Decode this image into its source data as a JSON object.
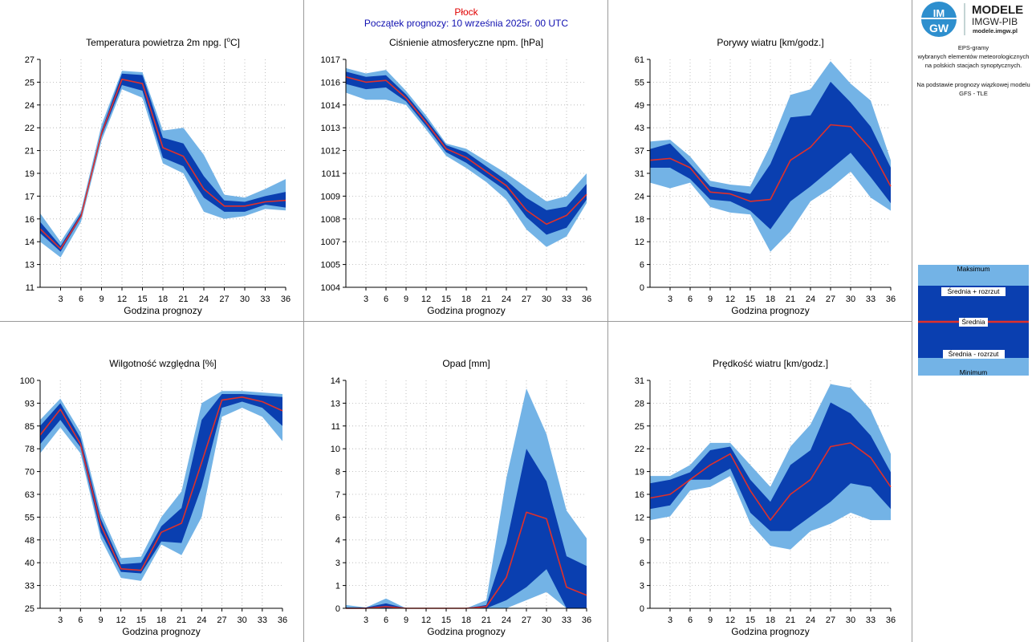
{
  "header": {
    "station": "Płock",
    "forecast_start": "Początek prognozy: 10 września 2025r. 00 UTC"
  },
  "logo": {
    "mark_top": "IM",
    "mark_bottom": "GW",
    "title": "MODELE",
    "subtitle": "IMGW-PIB",
    "url": "modele.imgw.pl"
  },
  "info": {
    "line1": "EPS-gramy",
    "line2": "wybranych elementów meteorologicznych",
    "line3": "na polskich stacjach  synoptycznych.",
    "line4": "Na podstawie prognozy wiązkowej modelu",
    "line5": "GFS - TLE"
  },
  "legend": {
    "max": "Maksimum",
    "mean_plus": "Średnia + rozrzut",
    "mean": "Średnia",
    "mean_minus": "Średnia - rozrzut",
    "min": "Minimum"
  },
  "colors": {
    "outer_band": "#73b3e6",
    "inner_band": "#0a3fb0",
    "mean_line": "#e0302a",
    "grid": "#b0b0b0"
  },
  "chart_data": [
    {
      "type": "area",
      "title": "Temperatura powietrza 2m npg. [°C]",
      "title_main": "Temperatura powietrza 2m npg. [",
      "title_sup": "o",
      "title_end": "C]",
      "xlabel": "Godzina prognozy",
      "x": [
        0,
        3,
        6,
        9,
        12,
        15,
        18,
        21,
        24,
        27,
        30,
        33,
        36
      ],
      "xticks": [
        "3",
        "6",
        "9",
        "12",
        "15",
        "18",
        "21",
        "24",
        "27",
        "30",
        "33",
        "36"
      ],
      "ylim": [
        11,
        27
      ],
      "yticks": [
        "11",
        "13",
        "14",
        "16",
        "17",
        "19",
        "21",
        "22",
        "24",
        "25",
        "27"
      ],
      "min": [
        14.2,
        13.1,
        15.6,
        21.3,
        24.9,
        24.3,
        19.7,
        19.0,
        16.3,
        15.8,
        16.0,
        16.5,
        16.4
      ],
      "lower": [
        14.8,
        13.5,
        15.9,
        21.6,
        25.2,
        24.8,
        20.1,
        19.5,
        17.3,
        16.3,
        16.3,
        16.8,
        16.6
      ],
      "mean": [
        15.1,
        13.7,
        16.0,
        21.8,
        25.6,
        25.3,
        20.8,
        20.2,
        17.9,
        16.7,
        16.7,
        17.0,
        17.1
      ],
      "upper": [
        15.6,
        13.9,
        16.2,
        22.0,
        26.0,
        25.9,
        21.5,
        21.1,
        18.8,
        17.1,
        17.0,
        17.4,
        17.7
      ],
      "max": [
        16.2,
        14.2,
        16.4,
        22.4,
        26.2,
        26.1,
        22.0,
        22.2,
        20.3,
        17.5,
        17.3,
        17.9,
        18.6
      ]
    },
    {
      "type": "area",
      "title": "Ciśnienie atmosferyczne npm. [hPa]",
      "xlabel": "Godzina prognozy",
      "x": [
        0,
        3,
        6,
        9,
        12,
        15,
        18,
        21,
        24,
        27,
        30,
        33,
        36
      ],
      "xticks": [
        "3",
        "6",
        "9",
        "12",
        "15",
        "18",
        "21",
        "24",
        "27",
        "30",
        "33",
        "36"
      ],
      "ylim": [
        1004,
        1017
      ],
      "yticks": [
        "1004",
        "1005",
        "1007",
        "1008",
        "1009",
        "1011",
        "1012",
        "1013",
        "1014",
        "1016",
        "1017"
      ],
      "min": [
        1015.1,
        1014.7,
        1014.7,
        1014.4,
        1013.0,
        1011.5,
        1010.8,
        1010.0,
        1009.0,
        1007.3,
        1006.3,
        1006.9,
        1008.8
      ],
      "lower": [
        1015.6,
        1015.3,
        1015.4,
        1014.6,
        1013.2,
        1011.7,
        1011.1,
        1010.3,
        1009.5,
        1008.0,
        1007.0,
        1007.4,
        1009.0
      ],
      "mean": [
        1016.0,
        1015.7,
        1015.8,
        1014.8,
        1013.4,
        1011.9,
        1011.4,
        1010.6,
        1009.8,
        1008.4,
        1007.6,
        1008.1,
        1009.3
      ],
      "upper": [
        1016.3,
        1016.0,
        1016.1,
        1015.0,
        1013.6,
        1012.1,
        1011.7,
        1010.9,
        1010.1,
        1009.1,
        1008.4,
        1008.6,
        1009.9
      ],
      "max": [
        1016.5,
        1016.2,
        1016.4,
        1015.2,
        1013.8,
        1012.2,
        1011.9,
        1011.2,
        1010.5,
        1009.7,
        1008.9,
        1009.2,
        1010.5
      ]
    },
    {
      "type": "area",
      "title": "Porywy wiatru [km/godz.]",
      "xlabel": "Godzina prognozy",
      "x": [
        0,
        3,
        6,
        9,
        12,
        15,
        18,
        21,
        24,
        27,
        30,
        33,
        36
      ],
      "xticks": [
        "3",
        "6",
        "9",
        "12",
        "15",
        "18",
        "21",
        "24",
        "27",
        "30",
        "33",
        "36"
      ],
      "ylim": [
        0,
        61
      ],
      "yticks": [
        "0",
        "6",
        "12",
        "18",
        "24",
        "31",
        "37",
        "43",
        "49",
        "55",
        "61"
      ],
      "min": [
        28,
        26.5,
        28,
        21.5,
        20,
        19.5,
        9.5,
        15,
        23,
        26.5,
        31,
        24,
        20.5
      ],
      "lower": [
        32,
        32,
        29,
        23.5,
        23,
        20.5,
        15.5,
        23,
        27,
        31.5,
        36,
        29.5,
        22.5
      ],
      "mean": [
        34,
        34.5,
        32,
        25.5,
        25,
        23,
        23.5,
        34,
        37.5,
        43.5,
        43,
        37,
        27
      ],
      "upper": [
        37,
        38.5,
        33,
        27,
        26,
        25,
        33,
        45.5,
        46,
        55,
        49.5,
        43,
        32
      ],
      "max": [
        39,
        39.5,
        35,
        28.5,
        27.5,
        27,
        38,
        51.5,
        53,
        60.5,
        54.5,
        50,
        34
      ]
    },
    {
      "type": "area",
      "title": "Wilgotność względna [%]",
      "xlabel": "Godzina prognozy",
      "x": [
        0,
        3,
        6,
        9,
        12,
        15,
        18,
        21,
        24,
        27,
        30,
        33,
        36
      ],
      "xticks": [
        "3",
        "6",
        "9",
        "12",
        "15",
        "18",
        "21",
        "24",
        "27",
        "30",
        "33",
        "36"
      ],
      "ylim": [
        25,
        100
      ],
      "yticks": [
        "25",
        "33",
        "40",
        "48",
        "55",
        "63",
        "70",
        "78",
        "85",
        "93",
        "100"
      ],
      "min": [
        76,
        84.5,
        76,
        48,
        35,
        34,
        46,
        42.5,
        55,
        88,
        91,
        88,
        80
      ],
      "lower": [
        79,
        87,
        78,
        50,
        37,
        36.5,
        47,
        46.5,
        65,
        91,
        93,
        91,
        85
      ],
      "mean": [
        82,
        90.5,
        79,
        52.5,
        38,
        37.5,
        50,
        53,
        73,
        93.5,
        94.5,
        93,
        90
      ],
      "upper": [
        85,
        92.5,
        81,
        54.5,
        39.5,
        40,
        52,
        58,
        87,
        95.5,
        95.5,
        95,
        94.5
      ],
      "max": [
        87,
        94,
        83,
        56.5,
        41.5,
        42,
        55,
        63.5,
        92.5,
        96.5,
        96.5,
        96,
        95.5
      ]
    },
    {
      "type": "area",
      "title": "Opad [mm]",
      "xlabel": "Godzina prognozy",
      "x": [
        0,
        3,
        6,
        9,
        12,
        15,
        18,
        21,
        24,
        27,
        30,
        33,
        36
      ],
      "xticks": [
        "3",
        "6",
        "9",
        "12",
        "15",
        "18",
        "21",
        "24",
        "27",
        "30",
        "33",
        "36"
      ],
      "ylim": [
        0,
        14
      ],
      "yticks": [
        "0",
        "1",
        "3",
        "4",
        "6",
        "7",
        "8",
        "10",
        "11",
        "13",
        "14"
      ],
      "min": [
        0,
        0,
        0,
        0,
        0,
        0,
        0,
        0,
        0,
        0.5,
        1,
        0,
        0
      ],
      "lower": [
        0,
        0,
        0,
        0,
        0,
        0,
        0,
        0,
        0.5,
        1.3,
        2.4,
        0,
        0
      ],
      "mean": [
        0,
        0,
        0.1,
        0,
        0,
        0,
        0,
        0.1,
        1.9,
        5.9,
        5.5,
        1.3,
        0.8
      ],
      "upper": [
        0.05,
        0.05,
        0.3,
        0,
        0,
        0,
        0,
        0.2,
        4,
        9.8,
        7.8,
        3.2,
        2.6
      ],
      "max": [
        0.2,
        0.05,
        0.6,
        0,
        0,
        0,
        0,
        0.5,
        8,
        13.5,
        10.7,
        6,
        4.3
      ]
    },
    {
      "type": "area",
      "title": "Prędkość wiatru [km/godz.]",
      "xlabel": "Godzina prognozy",
      "x": [
        0,
        3,
        6,
        9,
        12,
        15,
        18,
        21,
        24,
        27,
        30,
        33,
        36
      ],
      "xticks": [
        "3",
        "6",
        "9",
        "12",
        "15",
        "18",
        "21",
        "24",
        "27",
        "30",
        "33",
        "36"
      ],
      "ylim": [
        0,
        31
      ],
      "yticks": [
        "0",
        "3",
        "6",
        "9",
        "12",
        "16",
        "19",
        "22",
        "25",
        "28",
        "31"
      ],
      "min": [
        12,
        12.5,
        16,
        16.5,
        18,
        11.5,
        8.5,
        8,
        10.5,
        11.5,
        13,
        12,
        12
      ],
      "lower": [
        13.5,
        14,
        17.5,
        17.5,
        19,
        13,
        10.5,
        10.5,
        12.5,
        14.5,
        17,
        16.5,
        13.5
      ],
      "mean": [
        15,
        15.5,
        17.5,
        19.5,
        21,
        16,
        12,
        15.5,
        17.5,
        22,
        22.5,
        20.5,
        16.5
      ],
      "upper": [
        17,
        17.5,
        18.5,
        21.5,
        22,
        17.5,
        14.5,
        19.5,
        21.5,
        28,
        26.5,
        23.5,
        18.5
      ],
      "max": [
        18,
        18,
        19.5,
        22.5,
        22.5,
        19.5,
        16.5,
        22,
        25,
        30.5,
        30,
        27,
        21
      ]
    }
  ]
}
